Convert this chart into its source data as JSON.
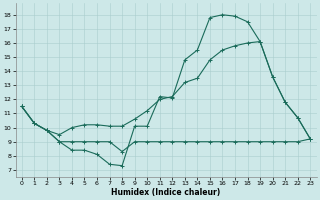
{
  "xlabel": "Humidex (Indice chaleur)",
  "xlim": [
    -0.5,
    23.5
  ],
  "ylim": [
    6.5,
    18.8
  ],
  "yticks": [
    7,
    8,
    9,
    10,
    11,
    12,
    13,
    14,
    15,
    16,
    17,
    18
  ],
  "xticks": [
    0,
    1,
    2,
    3,
    4,
    5,
    6,
    7,
    8,
    9,
    10,
    11,
    12,
    13,
    14,
    15,
    16,
    17,
    18,
    19,
    20,
    21,
    22,
    23
  ],
  "bg_color": "#cde8e8",
  "line_color": "#1a6b5a",
  "grid_color": "#aacece",
  "line1_x": [
    0,
    1,
    2,
    3,
    4,
    5,
    6,
    7,
    8,
    9,
    10,
    11,
    12,
    13,
    14,
    15,
    16,
    17,
    18,
    19,
    20,
    21,
    22,
    23
  ],
  "line1_y": [
    11.5,
    10.3,
    9.8,
    9.0,
    8.4,
    8.4,
    8.1,
    7.4,
    7.3,
    10.1,
    10.1,
    12.2,
    12.1,
    14.8,
    15.5,
    17.8,
    18.0,
    17.9,
    17.5,
    16.1,
    13.6,
    11.8,
    10.7,
    9.2
  ],
  "line2_x": [
    0,
    1,
    2,
    3,
    4,
    5,
    6,
    7,
    8,
    9,
    10,
    11,
    12,
    13,
    14,
    15,
    16,
    17,
    18,
    19,
    20,
    21,
    22,
    23
  ],
  "line2_y": [
    11.5,
    10.3,
    9.8,
    9.0,
    9.0,
    9.0,
    9.0,
    9.0,
    8.3,
    9.0,
    9.0,
    9.0,
    9.0,
    9.0,
    9.0,
    9.0,
    9.0,
    9.0,
    9.0,
    9.0,
    9.0,
    9.0,
    9.0,
    9.2
  ],
  "line3_x": [
    0,
    1,
    2,
    3,
    4,
    5,
    6,
    7,
    8,
    9,
    10,
    11,
    12,
    13,
    14,
    15,
    16,
    17,
    18,
    19,
    20,
    21,
    22,
    23
  ],
  "line3_y": [
    11.5,
    10.3,
    9.8,
    9.5,
    10.0,
    10.2,
    10.2,
    10.1,
    10.1,
    10.6,
    11.2,
    12.0,
    12.2,
    13.2,
    13.5,
    14.8,
    15.5,
    15.8,
    16.0,
    16.1,
    13.6,
    11.8,
    10.7,
    9.2
  ]
}
